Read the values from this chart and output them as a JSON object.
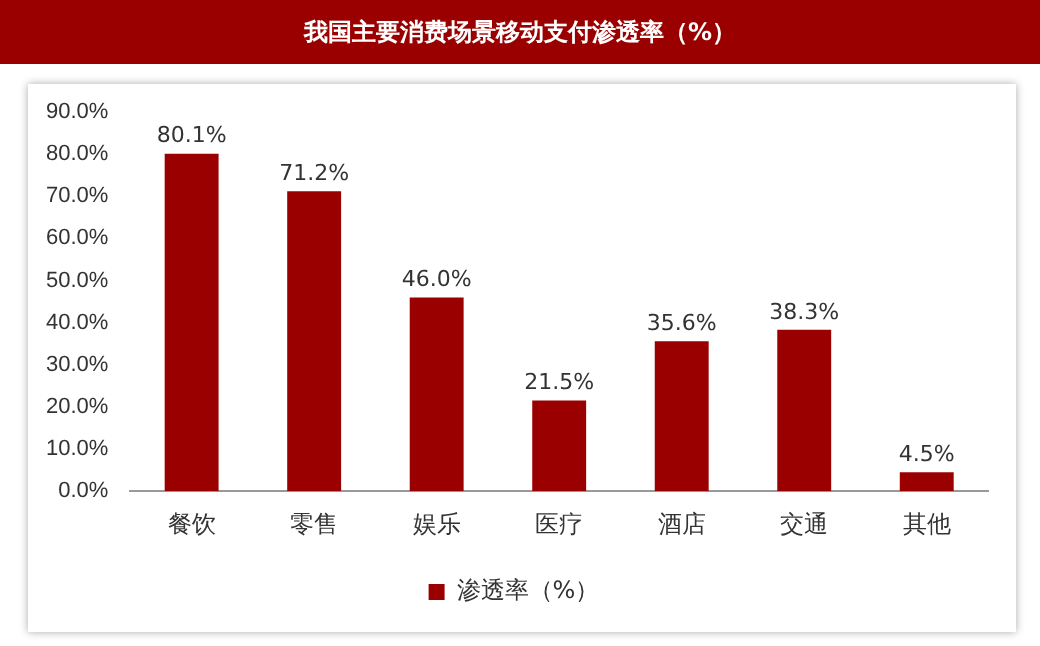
{
  "chart_data": {
    "type": "bar",
    "title": "我国主要消费场景移动支付渗透率（%）",
    "categories": [
      "餐饮",
      "零售",
      "娱乐",
      "医疗",
      "酒店",
      "交通",
      "其他"
    ],
    "series": [
      {
        "name": "渗透率（%）",
        "color": "#9b0000",
        "values": [
          80.1,
          71.2,
          46.0,
          21.5,
          35.6,
          38.3,
          4.5
        ],
        "value_labels": [
          "80.1%",
          "71.2%",
          "46.0%",
          "21.5%",
          "35.6%",
          "38.3%",
          "4.5%"
        ]
      }
    ],
    "ylim": [
      0,
      90
    ],
    "yticks": [
      {
        "value": 0,
        "label": "0.0%"
      },
      {
        "value": 10,
        "label": "10.0%"
      },
      {
        "value": 20,
        "label": "20.0%"
      },
      {
        "value": 30,
        "label": "30.0%"
      },
      {
        "value": 40,
        "label": "40.0%"
      },
      {
        "value": 50,
        "label": "50.0%"
      },
      {
        "value": 60,
        "label": "60.0%"
      },
      {
        "value": 70,
        "label": "70.0%"
      },
      {
        "value": 80,
        "label": "80.0%"
      },
      {
        "value": 90,
        "label": "90.0%"
      }
    ],
    "grid": false,
    "legend": "bottom"
  }
}
